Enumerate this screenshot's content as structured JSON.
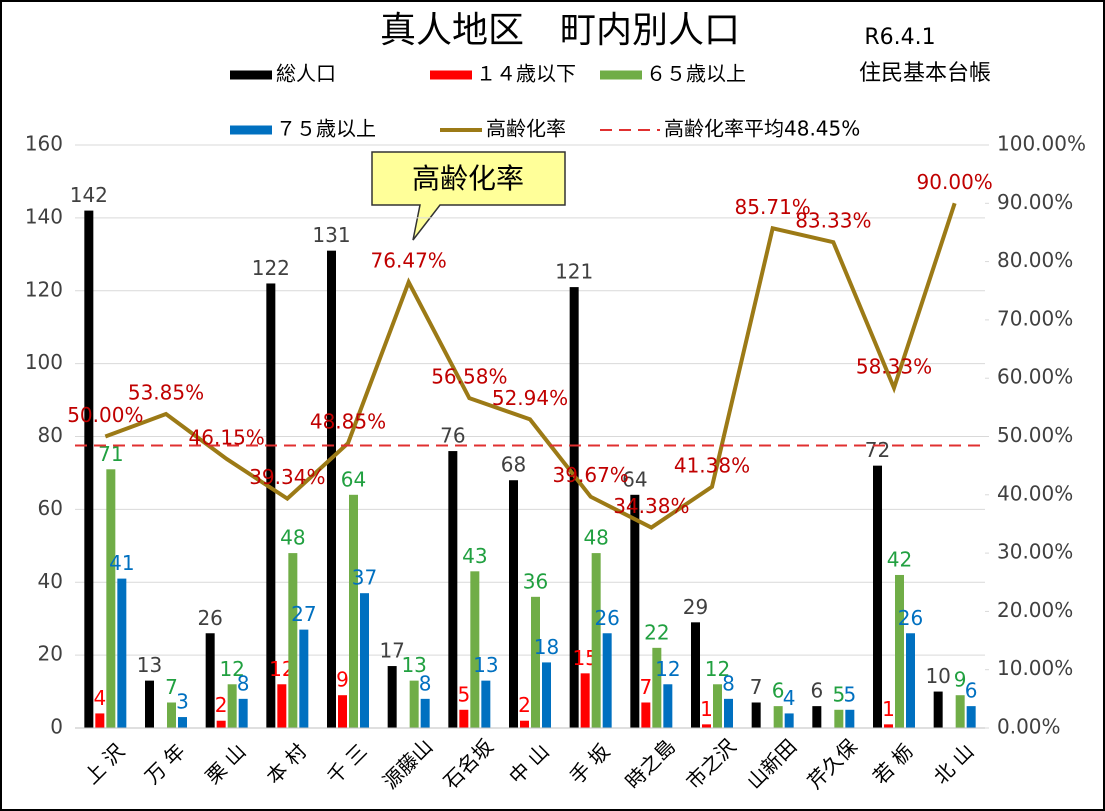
{
  "chart_data": {
    "type": "bar-line",
    "title": "真人地区　町内別人口",
    "date": "R6.4.1",
    "source": "住民基本台帳",
    "callout": "高齢化率",
    "categories": [
      "上 沢",
      "万 年",
      "栗 山",
      "本 村",
      "千 三",
      "源藤山",
      "石名坂",
      "中 山",
      "手 坂",
      "時之島",
      "市之沢",
      "山新田",
      "芹久保",
      "若 栃",
      "北 山"
    ],
    "series": [
      {
        "name": "総人口",
        "color": "#000000",
        "label_color": "#404040",
        "values": [
          142,
          13,
          26,
          122,
          131,
          17,
          76,
          68,
          121,
          64,
          29,
          7,
          6,
          72,
          10
        ]
      },
      {
        "name": "１４歳以下",
        "color": "#ff0000",
        "label_color": "#ff0000",
        "values": [
          4,
          null,
          2,
          12,
          9,
          null,
          5,
          2,
          15,
          7,
          1,
          null,
          null,
          1,
          null
        ]
      },
      {
        "name": "６５歳以上",
        "color": "#70ad47",
        "label_color": "#21a040",
        "values": [
          71,
          7,
          12,
          48,
          64,
          13,
          43,
          36,
          48,
          22,
          12,
          6,
          5,
          42,
          9
        ]
      },
      {
        "name": "７５歳以上",
        "color": "#0070c0",
        "label_color": "#0070c0",
        "values": [
          41,
          3,
          8,
          27,
          37,
          8,
          13,
          18,
          26,
          12,
          8,
          4,
          5,
          26,
          6
        ]
      },
      {
        "name": "高齢化率",
        "type": "line",
        "axis": "y2",
        "color": "#9c7a16",
        "label_color": "#c00000",
        "values": [
          50.0,
          53.85,
          46.15,
          39.34,
          48.85,
          76.47,
          56.58,
          52.94,
          39.67,
          34.38,
          41.38,
          85.71,
          83.33,
          58.33,
          90.0
        ],
        "value_labels": [
          "50.00%",
          "53.85%",
          "46.15%",
          "39.34%",
          "48.85%",
          "76.47%",
          "56.58%",
          "52.94%",
          "39.67%",
          "34.38%",
          "41.38%",
          "85.71%",
          "83.33%",
          "58.33%",
          "90.00%"
        ]
      }
    ],
    "average": {
      "name": "高齢化率平均48.45%",
      "value": 48.45,
      "axis": "y2",
      "color": "#e03030"
    },
    "ylim": [
      0,
      160
    ],
    "yticks": [
      0,
      20,
      40,
      60,
      80,
      100,
      120,
      140,
      160
    ],
    "y2lim": [
      0,
      100
    ],
    "y2ticks": [
      {
        "value": 0,
        "label": "0.00%"
      },
      {
        "value": 10,
        "label": "10.00%"
      },
      {
        "value": 20,
        "label": "20.00%"
      },
      {
        "value": 30,
        "label": "30.00%"
      },
      {
        "value": 40,
        "label": "40.00%"
      },
      {
        "value": 50,
        "label": "50.00%"
      },
      {
        "value": 60,
        "label": "60.00%"
      },
      {
        "value": 70,
        "label": "70.00%"
      },
      {
        "value": 80,
        "label": "80.00%"
      },
      {
        "value": 90,
        "label": "90.00%"
      },
      {
        "value": 100,
        "label": "100.00%"
      }
    ]
  }
}
